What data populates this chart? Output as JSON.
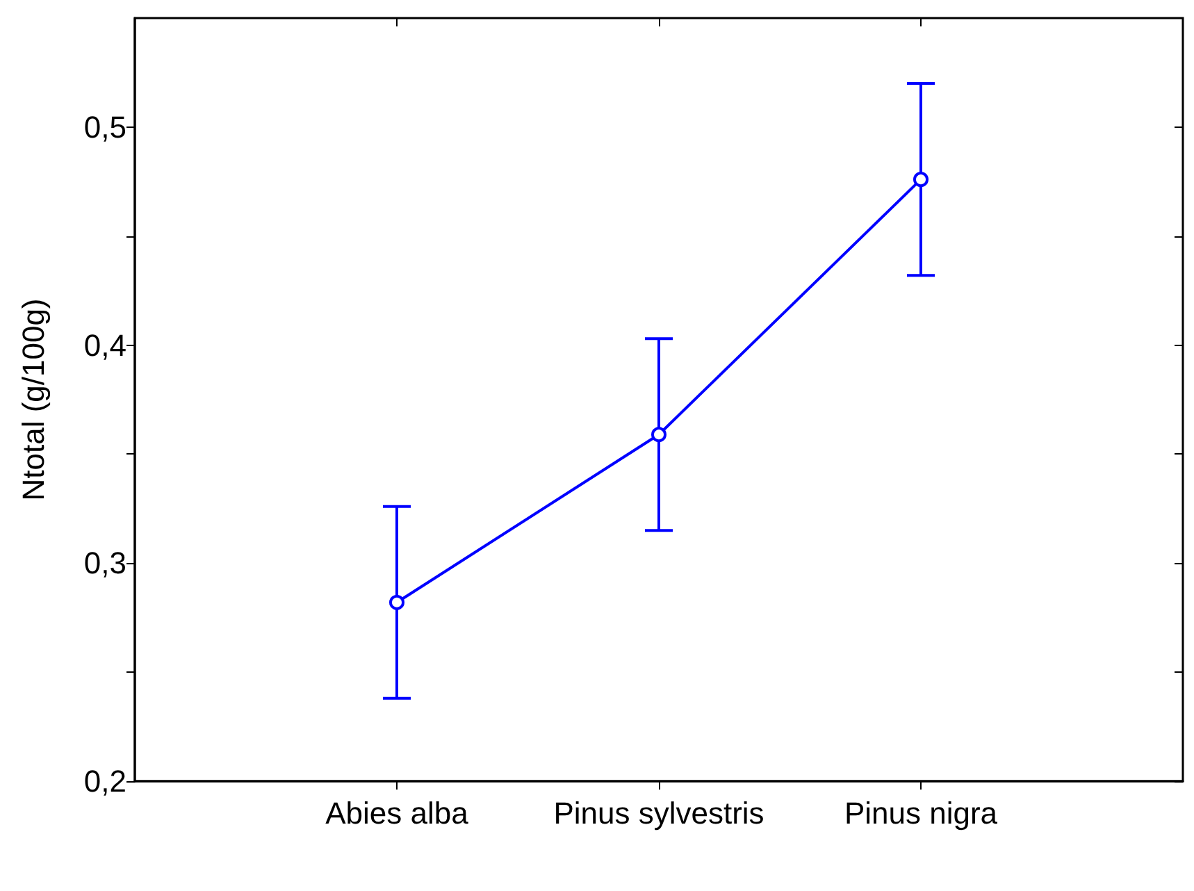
{
  "chart_data": {
    "type": "line",
    "ylabel": "Ntotal (g/100g)",
    "categories": [
      "Abies alba",
      "Pinus sylvestris",
      "Pinus nigra"
    ],
    "values": [
      0.282,
      0.359,
      0.476
    ],
    "errors": [
      0.044,
      0.044,
      0.044
    ],
    "color": "#0000ff",
    "marker": "circle",
    "line_style": "solid",
    "ylim": [
      0.2,
      0.55
    ],
    "yticks": [
      {
        "value": 0.2,
        "label": "0,2"
      },
      {
        "value": 0.25,
        "label": null
      },
      {
        "value": 0.3,
        "label": "0,3"
      },
      {
        "value": 0.35,
        "label": null
      },
      {
        "value": 0.4,
        "label": "0,4"
      },
      {
        "value": 0.45,
        "label": null
      },
      {
        "value": 0.5,
        "label": "0,5"
      }
    ]
  }
}
